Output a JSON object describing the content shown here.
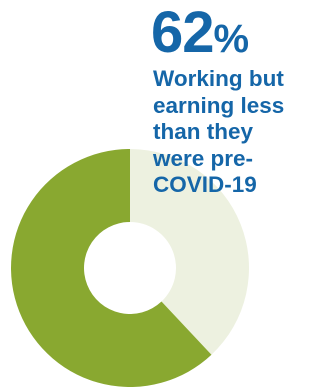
{
  "chart_data": {
    "type": "pie",
    "title": "",
    "segments": [
      {
        "label": "Working but earning less than they were pre-COVID-19",
        "value": 62
      },
      {
        "label": "",
        "value": 38
      }
    ],
    "colors": [
      "#89a830",
      "#edf1e0"
    ]
  },
  "stat": {
    "value": "62",
    "unit": "%",
    "caption_lines": [
      "Working but",
      "earning less",
      "than they",
      "were pre-",
      "COVID-19"
    ]
  },
  "colors": {
    "accent": "#1566a8",
    "highlight_segment": "#89a830",
    "remainder_segment": "#edf1e0"
  }
}
